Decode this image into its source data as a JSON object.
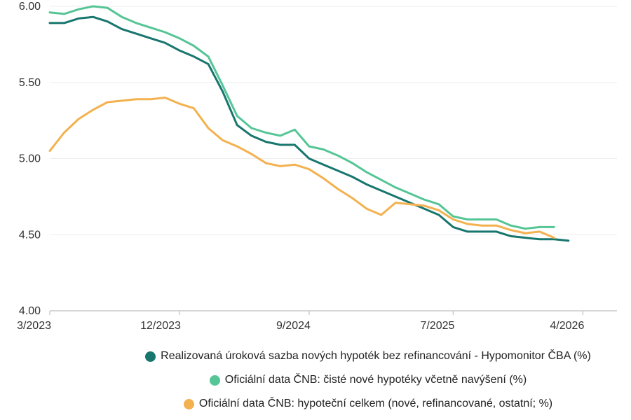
{
  "chart_data": {
    "type": "line",
    "title": "",
    "x_unit": "month",
    "x_start_label": "3/2023",
    "x_tick_labels": [
      "3/2023",
      "12/2023",
      "9/2024",
      "7/2025",
      "4/2026"
    ],
    "x_tick_months": [
      0,
      9,
      18,
      28,
      37
    ],
    "y_tick_labels": [
      "4.00",
      "4.50",
      "5.00",
      "5.50",
      "6.00"
    ],
    "y_ticks": [
      4.0,
      4.5,
      5.0,
      5.5,
      6.0
    ],
    "ylim": [
      4.0,
      6.0
    ],
    "grid": true,
    "legend_position": "bottom",
    "grid_color": "#ededed",
    "axis_color": "#c9c9c9",
    "series": [
      {
        "name": "Realizovaná úroková sazba nových hypoték bez refinancování - Hypomonitor ČBA (%)",
        "color": "#17766d",
        "values": [
          5.89,
          5.89,
          5.92,
          5.93,
          5.9,
          5.85,
          5.82,
          5.79,
          5.76,
          5.71,
          5.67,
          5.62,
          5.44,
          5.22,
          5.15,
          5.11,
          5.09,
          5.09,
          5.0,
          4.96,
          4.92,
          4.88,
          4.83,
          4.79,
          4.75,
          4.71,
          4.67,
          4.63,
          4.55,
          4.52,
          4.52,
          4.52,
          4.49,
          4.48,
          4.47,
          4.47,
          4.46
        ]
      },
      {
        "name": "Oficiální data ČNB: čisté nové hypotéky včetně navýšení (%)",
        "color": "#55c596",
        "values": [
          5.96,
          5.95,
          5.98,
          6.0,
          5.99,
          5.93,
          5.89,
          5.86,
          5.83,
          5.79,
          5.74,
          5.67,
          5.48,
          5.28,
          5.2,
          5.17,
          5.15,
          5.19,
          5.08,
          5.06,
          5.02,
          4.97,
          4.91,
          4.86,
          4.81,
          4.77,
          4.73,
          4.7,
          4.62,
          4.6,
          4.6,
          4.6,
          4.56,
          4.54,
          4.55,
          4.55
        ]
      },
      {
        "name": "Oficiální data ČNB: hypoteční celkem (nové, refinancované, ostatní; %)",
        "color": "#f3b14f",
        "values": [
          5.05,
          5.17,
          5.26,
          5.32,
          5.37,
          5.38,
          5.39,
          5.39,
          5.4,
          5.36,
          5.33,
          5.2,
          5.12,
          5.08,
          5.03,
          4.97,
          4.95,
          4.96,
          4.93,
          4.87,
          4.8,
          4.74,
          4.67,
          4.63,
          4.71,
          4.7,
          4.69,
          4.66,
          4.6,
          4.57,
          4.56,
          4.56,
          4.53,
          4.51,
          4.52,
          4.48
        ]
      }
    ]
  }
}
